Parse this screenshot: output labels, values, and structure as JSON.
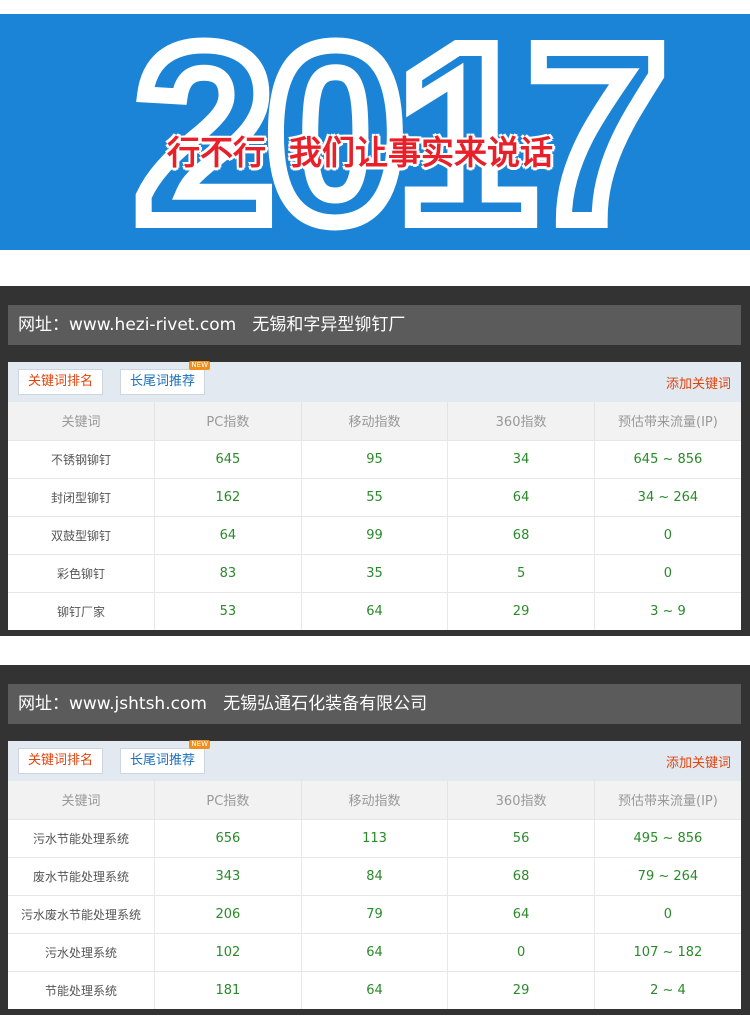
{
  "banner": {
    "year": "2017",
    "slogan": "行不行  我们让事实来说话",
    "bg_color": "#1c84d6",
    "slogan_color": "#e8202a"
  },
  "sections": [
    {
      "title": "网址：www.hezi-rivet.com   无锡和字异型铆钉厂",
      "tabs": [
        {
          "label": "关键词排名"
        },
        {
          "label": "长尾词推荐",
          "badge": "NEW"
        }
      ],
      "add_label": "添加关键词",
      "columns": [
        "关键词",
        "PC指数",
        "移动指数",
        "360指数",
        "预估带来流量(IP)"
      ],
      "rows": [
        [
          "不锈钢铆钉",
          "645",
          "95",
          "34",
          "645 ~ 856"
        ],
        [
          "封闭型铆钉",
          "162",
          "55",
          "64",
          "34 ~ 264"
        ],
        [
          "双鼓型铆钉",
          "64",
          "99",
          "68",
          "0"
        ],
        [
          "彩色铆钉",
          "83",
          "35",
          "5",
          "0"
        ],
        [
          "铆钉厂家",
          "53",
          "64",
          "29",
          "3 ~ 9"
        ]
      ]
    },
    {
      "title": "网址：www.jshtsh.com   无锡弘通石化装备有限公司",
      "tabs": [
        {
          "label": "关键词排名"
        },
        {
          "label": "长尾词推荐",
          "badge": "NEW"
        }
      ],
      "add_label": "添加关键词",
      "columns": [
        "关键词",
        "PC指数",
        "移动指数",
        "360指数",
        "预估带来流量(IP)"
      ],
      "rows": [
        [
          "污水节能处理系统",
          "656",
          "113",
          "56",
          "495 ~ 856"
        ],
        [
          "废水节能处理系统",
          "343",
          "84",
          "68",
          "79 ~ 264"
        ],
        [
          "污水废水节能处理系统",
          "206",
          "79",
          "64",
          "0"
        ],
        [
          "污水处理系统",
          "102",
          "64",
          "0",
          "107 ~ 182"
        ],
        [
          "节能处理系统",
          "181",
          "64",
          "29",
          "2 ~ 4"
        ]
      ]
    }
  ]
}
